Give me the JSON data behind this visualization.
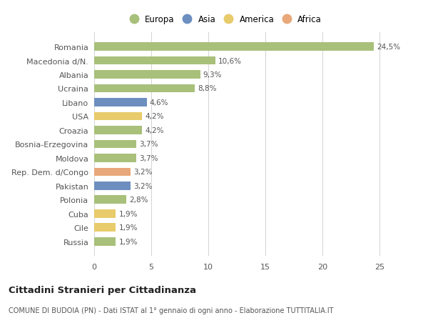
{
  "countries": [
    "Romania",
    "Macedonia d/N.",
    "Albania",
    "Ucraina",
    "Libano",
    "USA",
    "Croazia",
    "Bosnia-Erzegovina",
    "Moldova",
    "Rep. Dem. d/Congo",
    "Pakistan",
    "Polonia",
    "Cuba",
    "Cile",
    "Russia"
  ],
  "values": [
    24.5,
    10.6,
    9.3,
    8.8,
    4.6,
    4.2,
    4.2,
    3.7,
    3.7,
    3.2,
    3.2,
    2.8,
    1.9,
    1.9,
    1.9
  ],
  "labels": [
    "24,5%",
    "10,6%",
    "9,3%",
    "8,8%",
    "4,6%",
    "4,2%",
    "4,2%",
    "3,7%",
    "3,7%",
    "3,2%",
    "3,2%",
    "2,8%",
    "1,9%",
    "1,9%",
    "1,9%"
  ],
  "continents": [
    "Europa",
    "Europa",
    "Europa",
    "Europa",
    "Asia",
    "America",
    "Europa",
    "Europa",
    "Europa",
    "Africa",
    "Asia",
    "Europa",
    "America",
    "America",
    "Europa"
  ],
  "continent_colors": {
    "Europa": "#a8c07a",
    "Asia": "#6d8fc0",
    "America": "#e8cb6a",
    "Africa": "#e8a87a"
  },
  "legend_order": [
    "Europa",
    "Asia",
    "America",
    "Africa"
  ],
  "title": "Cittadini Stranieri per Cittadinanza",
  "subtitle": "COMUNE DI BUDOIA (PN) - Dati ISTAT al 1° gennaio di ogni anno - Elaborazione TUTTITALIA.IT",
  "xlim": [
    0,
    27
  ],
  "xticks": [
    0,
    5,
    10,
    15,
    20,
    25
  ],
  "background_color": "#ffffff",
  "bar_height": 0.6
}
